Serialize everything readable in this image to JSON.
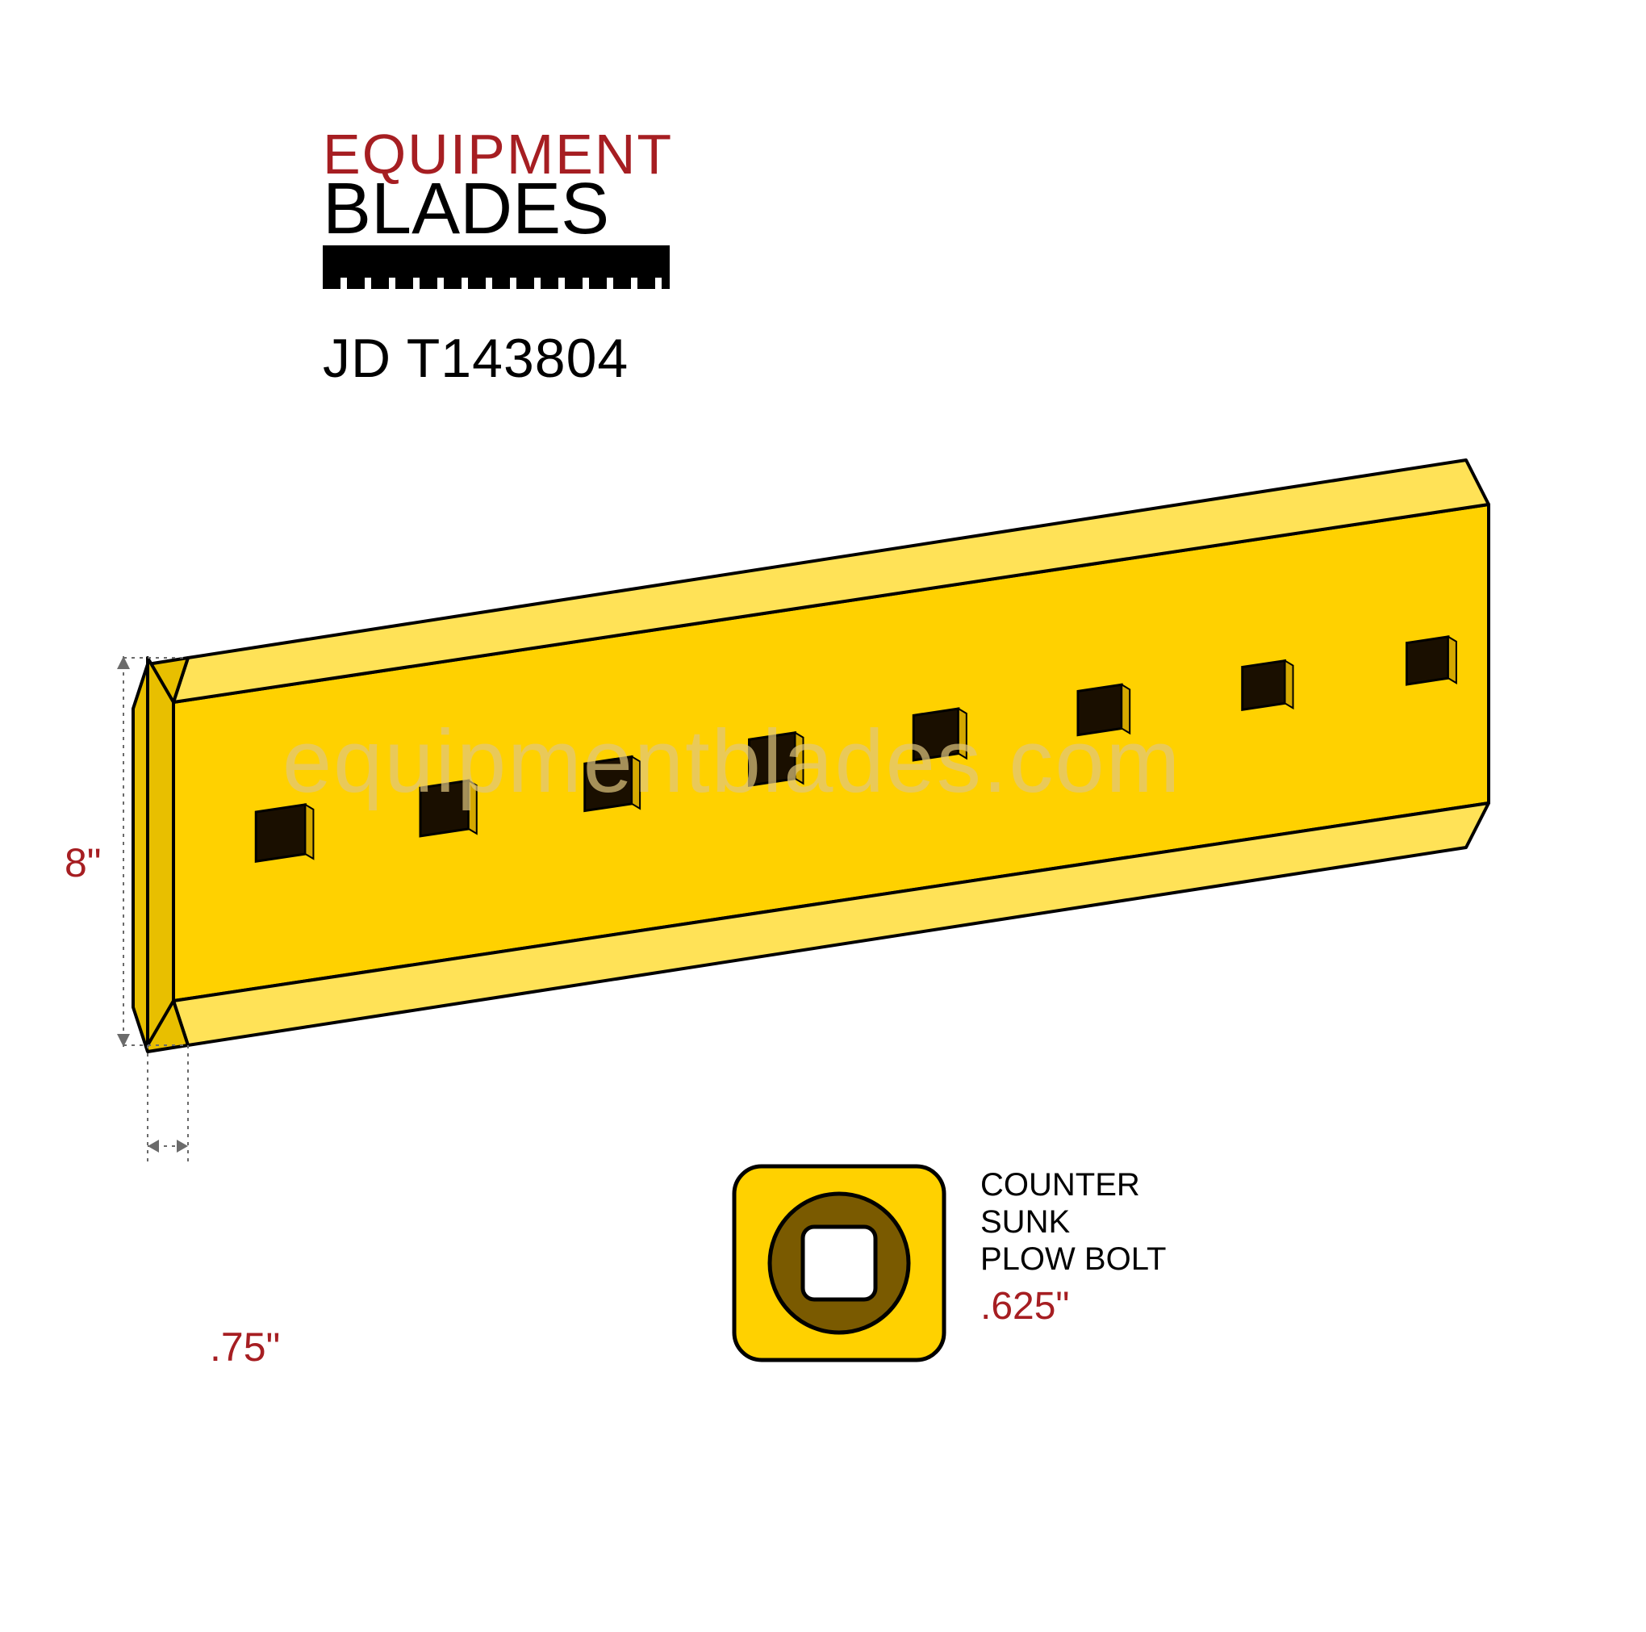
{
  "logo": {
    "line1": "EQUIPMENT",
    "line2": "BLADES",
    "line1_color": "#a61e22",
    "line2_color": "#000000"
  },
  "part_number": "JD T143804",
  "watermark": "equipmentblades.com",
  "dimensions": {
    "height": "8\"",
    "thickness": ".75\"",
    "bolt": ".625\""
  },
  "bolt_label": {
    "l1": "COUNTER",
    "l2": "SUNK",
    "l3": "PLOW BOLT"
  },
  "style": {
    "blade_fill": "#ffd100",
    "blade_fill_top": "#ffe257",
    "blade_fill_side": "#e8bf00",
    "stroke": "#000000",
    "stroke_width": 4,
    "hole_fill": "#1a0f00",
    "hole_highlight": "#d4a800",
    "dim_color": "#a61e22",
    "dim_line": "#6b6b6b",
    "bolt_ring": "#7a5a00",
    "bg": "#ffffff"
  },
  "blade": {
    "type": "infographic",
    "hole_count": 8,
    "hole_size": 62,
    "perspective_rise": 245,
    "viewbox_w": 1772,
    "viewbox_h": 720
  }
}
